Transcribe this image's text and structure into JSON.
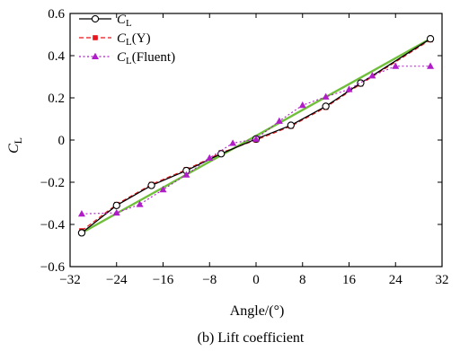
{
  "chart_data": {
    "type": "line",
    "xlabel": "Angle/(°)",
    "ylabel": "C_L",
    "caption": "(b) Lift coefficient",
    "xlim": [
      -32,
      32
    ],
    "ylim": [
      -0.6,
      0.6
    ],
    "xticks": [
      -32,
      -24,
      -16,
      -8,
      0,
      8,
      16,
      24,
      32
    ],
    "yticks": [
      0.6,
      0.4,
      0.2,
      0,
      -0.2,
      -0.4,
      -0.6
    ],
    "xtick_labels": [
      "−32",
      "−24",
      "−16",
      "−8",
      "0",
      "8",
      "16",
      "24",
      "32"
    ],
    "ytick_labels": [
      "0.6",
      "0.4",
      "0.2",
      "0",
      "−0.2",
      "−0.4",
      "−0.6"
    ],
    "grid": false,
    "legend_position": "top-left",
    "series": [
      {
        "name": "CL",
        "legend_main": "C",
        "legend_sub": "L",
        "legend_suffix": "",
        "color": "#000000",
        "marker": "open-circle",
        "line": "solid",
        "x": [
          -30,
          -24,
          -18,
          -12,
          -6,
          0,
          6,
          12,
          18,
          30
        ],
        "y": [
          -0.44,
          -0.31,
          -0.215,
          -0.145,
          -0.065,
          0.005,
          0.07,
          0.16,
          0.27,
          0.48
        ]
      },
      {
        "name": "CL(Y)",
        "legend_main": "C",
        "legend_sub": "L",
        "legend_suffix": "(Y)",
        "color": "#e8141b",
        "marker": "square",
        "line": "dashed",
        "x": [
          -30,
          -24,
          -18,
          -12,
          -6,
          0,
          6,
          12,
          18,
          30
        ],
        "y": [
          -0.43,
          -0.305,
          -0.21,
          -0.14,
          -0.06,
          0.0,
          0.065,
          0.155,
          0.265,
          0.475
        ]
      },
      {
        "name": "CL(Fluent)",
        "legend_main": "C",
        "legend_sub": "L",
        "legend_suffix": "(Fluent)",
        "color": "#b01cc8",
        "marker": "triangle",
        "line": "dotted",
        "x": [
          -30,
          -24,
          -20,
          -16,
          -12,
          -8,
          -4,
          0,
          4,
          8,
          12,
          16,
          20,
          24,
          30
        ],
        "y": [
          -0.35,
          -0.345,
          -0.305,
          -0.235,
          -0.165,
          -0.085,
          -0.015,
          0.005,
          0.09,
          0.165,
          0.205,
          0.24,
          0.305,
          0.35,
          0.35
        ]
      }
    ],
    "overlay": {
      "color": "#6fbf3a",
      "x": [
        -30,
        30
      ],
      "y": [
        -0.44,
        0.48
      ]
    }
  }
}
